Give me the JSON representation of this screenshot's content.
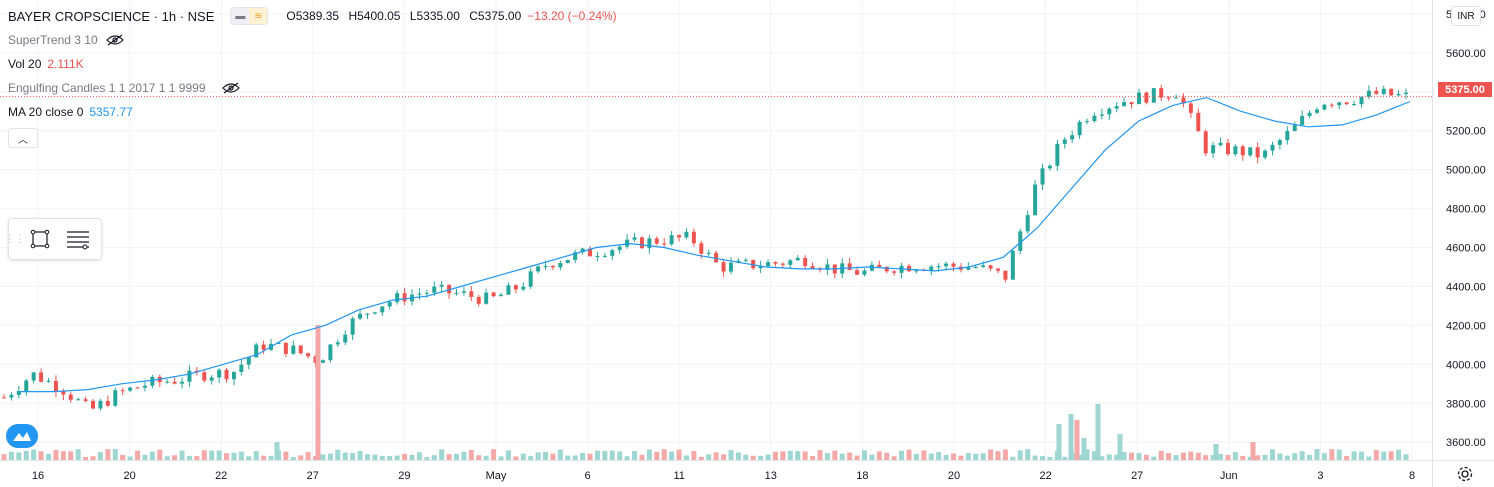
{
  "legend": {
    "title": "BAYER CROPSCIENCE · 1h · NSE",
    "open": "O5389.35",
    "high": "H5400.05",
    "low": "L5335.00",
    "close": "C5375.00",
    "change": "−13.20 (−0.24%)",
    "indicators": [
      {
        "name": "SuperTrend 3 10",
        "value": ""
      },
      {
        "name": "Vol 20",
        "value": "2.111K"
      },
      {
        "name": "Engulfing Candles 1 1 2017 1 1 9999",
        "value": ""
      },
      {
        "name": "MA 20 close 0",
        "value": "5357.77"
      }
    ]
  },
  "price_axis": {
    "currency": "INR",
    "last_price": "5375.00",
    "ticks": [
      "5800.00",
      "5600.00",
      "5400.00",
      "5200.00",
      "5000.00",
      "4800.00",
      "4600.00",
      "4400.00",
      "4200.00",
      "4000.00",
      "3800.00",
      "3600.00"
    ]
  },
  "time_axis": {
    "ticks": [
      "16",
      "20",
      "22",
      "27",
      "29",
      "May",
      "6",
      "11",
      "13",
      "18",
      "20",
      "22",
      "27",
      "Jun",
      "3",
      "8"
    ]
  },
  "colors": {
    "up": "#26a69a",
    "down": "#ef5350",
    "ma": "#2196f3",
    "vol_up": "#9ed6d1",
    "vol_down": "#f5a8a8",
    "grid": "#f0f3fa"
  },
  "chart_data": {
    "type": "candlestick",
    "symbol": "BAYER CROPSCIENCE",
    "interval": "1h",
    "exchange": "NSE",
    "ylim": [
      3560,
      5820
    ],
    "x": [
      "16",
      "20",
      "22",
      "27",
      "29",
      "May",
      "6",
      "11",
      "13",
      "18",
      "20",
      "22",
      "27",
      "Jun",
      "3",
      "8"
    ],
    "close_series": [
      3830,
      3950,
      3880,
      3760,
      3850,
      3900,
      3920,
      3950,
      3960,
      4100,
      4080,
      4020,
      4200,
      4300,
      4350,
      4380,
      4360,
      4330,
      4400,
      4520,
      4560,
      4590,
      4620,
      4640,
      4650,
      4500,
      4510,
      4520,
      4540,
      4490,
      4470,
      4500,
      4510,
      4505,
      4500,
      4450,
      4900,
      5150,
      5300,
      5350,
      5380,
      5400,
      5110,
      5100,
      5070,
      5200,
      5350,
      5360,
      5390,
      5375
    ],
    "ma20_series": [
      3860,
      3860,
      3870,
      3900,
      3920,
      3950,
      4000,
      4050,
      4150,
      4200,
      4280,
      4330,
      4350,
      4400,
      4450,
      4500,
      4550,
      4600,
      4620,
      4600,
      4560,
      4530,
      4500,
      4490,
      4490,
      4500,
      4490,
      4480,
      4500,
      4550,
      4700,
      4900,
      5100,
      5250,
      5330,
      5370,
      5300,
      5250,
      5220,
      5230,
      5280,
      5350
    ],
    "volume_notes": "spike near 27 (Apr) and cluster near 27 (May)"
  }
}
